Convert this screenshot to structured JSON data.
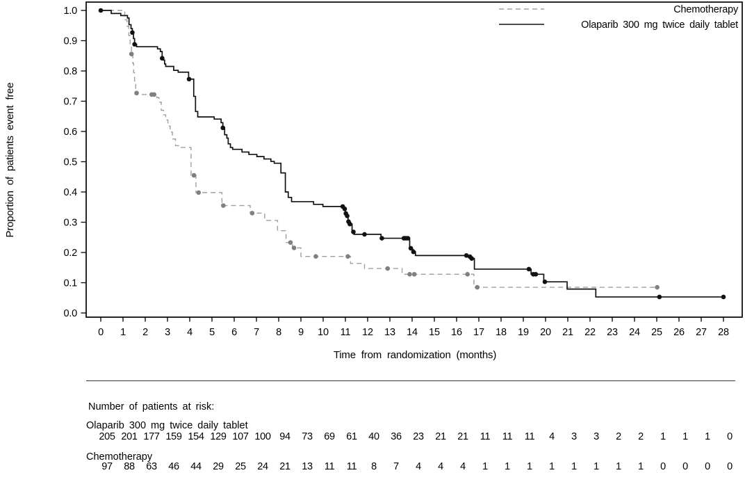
{
  "chart_data": {
    "type": "line",
    "subtype": "kaplan-meier-step",
    "title": "",
    "xlabel": "Time from randomization (months)",
    "ylabel": "Proportion of patients event free",
    "xlim": [
      0,
      28
    ],
    "ylim": [
      0.0,
      1.0
    ],
    "grid": false,
    "xtick_labels": [
      "0",
      "1",
      "2",
      "3",
      "4",
      "5",
      "6",
      "7",
      "8",
      "9",
      "10",
      "11",
      "12",
      "13",
      "14",
      "15",
      "16",
      "17",
      "18",
      "19",
      "20",
      "21",
      "22",
      "23",
      "24",
      "25",
      "26",
      "27",
      "28"
    ],
    "ytick_labels": [
      "1.0",
      "0.9",
      "0.8",
      "0.7",
      "0.6",
      "0.5",
      "0.4",
      "0.3",
      "0.2",
      "0.1",
      "0.0"
    ],
    "ytick_values": [
      1.0,
      0.9,
      0.8,
      0.7,
      0.6,
      0.5,
      0.4,
      0.3,
      0.2,
      0.1,
      0.0
    ],
    "legend": {
      "position": "top-right-inside",
      "entries": [
        {
          "label": "Chemotherapy",
          "style": "dashed",
          "color": "#9e9e9e"
        },
        {
          "label": "Olaparib 300 mg twice daily tablet",
          "style": "solid",
          "color": "#111111"
        }
      ]
    },
    "series": [
      {
        "name": "Chemotherapy",
        "color": "#9e9e9e",
        "censor_color": "#808080",
        "dash": "7 5",
        "width": 1.4,
        "end_month": 25.1,
        "steps": [
          [
            0,
            1
          ],
          [
            1.08,
            0.969
          ],
          [
            1.18,
            0.948
          ],
          [
            1.26,
            0.917
          ],
          [
            1.32,
            0.886
          ],
          [
            1.38,
            0.856
          ],
          [
            1.44,
            0.825
          ],
          [
            1.48,
            0.794
          ],
          [
            1.52,
            0.763
          ],
          [
            1.57,
            0.732
          ],
          [
            1.62,
            0.722
          ],
          [
            2.52,
            0.712
          ],
          [
            2.62,
            0.697
          ],
          [
            2.72,
            0.67
          ],
          [
            2.82,
            0.655
          ],
          [
            2.92,
            0.638
          ],
          [
            3.02,
            0.618
          ],
          [
            3.12,
            0.598
          ],
          [
            3.22,
            0.575
          ],
          [
            3.36,
            0.553
          ],
          [
            3.5,
            0.547
          ],
          [
            4.06,
            0.455
          ],
          [
            4.28,
            0.398
          ],
          [
            5.45,
            0.355
          ],
          [
            6.72,
            0.33
          ],
          [
            7.37,
            0.306
          ],
          [
            7.95,
            0.272
          ],
          [
            8.33,
            0.233
          ],
          [
            8.62,
            0.215
          ],
          [
            9,
            0.187
          ],
          [
            11.23,
            0.164
          ],
          [
            11.86,
            0.147
          ],
          [
            13.55,
            0.128
          ],
          [
            16.78,
            0.085
          ]
        ],
        "censors": [
          [
            1.38,
            0.856
          ],
          [
            1.61,
            0.727
          ],
          [
            2.29,
            0.722
          ],
          [
            2.4,
            0.722
          ],
          [
            4.19,
            0.455
          ],
          [
            4.4,
            0.398
          ],
          [
            5.51,
            0.355
          ],
          [
            6.81,
            0.33
          ],
          [
            8.53,
            0.233
          ],
          [
            8.69,
            0.215
          ],
          [
            9.67,
            0.187
          ],
          [
            11.11,
            0.187
          ],
          [
            12.9,
            0.147
          ],
          [
            13.89,
            0.128
          ],
          [
            14.1,
            0.128
          ],
          [
            16.49,
            0.128
          ],
          [
            16.93,
            0.085
          ],
          [
            25.02,
            0.085
          ]
        ]
      },
      {
        "name": "Olaparib 300 mg twice daily tablet",
        "color": "#111111",
        "censor_color": "#111111",
        "dash": null,
        "width": 1.7,
        "end_month": 28.05,
        "steps": [
          [
            0,
            1
          ],
          [
            0.47,
            0.99
          ],
          [
            0.9,
            0.983
          ],
          [
            1.2,
            0.975
          ],
          [
            1.27,
            0.953
          ],
          [
            1.36,
            0.94
          ],
          [
            1.42,
            0.927
          ],
          [
            1.47,
            0.907
          ],
          [
            1.52,
            0.888
          ],
          [
            1.61,
            0.88
          ],
          [
            2.55,
            0.873
          ],
          [
            2.68,
            0.864
          ],
          [
            2.76,
            0.842
          ],
          [
            2.82,
            0.836
          ],
          [
            2.87,
            0.823
          ],
          [
            2.92,
            0.815
          ],
          [
            3.28,
            0.802
          ],
          [
            3.48,
            0.796
          ],
          [
            3.95,
            0.773
          ],
          [
            4.18,
            0.716
          ],
          [
            4.26,
            0.666
          ],
          [
            4.36,
            0.648
          ],
          [
            5.1,
            0.641
          ],
          [
            5.41,
            0.629
          ],
          [
            5.49,
            0.612
          ],
          [
            5.57,
            0.589
          ],
          [
            5.67,
            0.578
          ],
          [
            5.73,
            0.559
          ],
          [
            5.83,
            0.547
          ],
          [
            5.93,
            0.541
          ],
          [
            6.35,
            0.532
          ],
          [
            6.66,
            0.524
          ],
          [
            7.02,
            0.517
          ],
          [
            7.34,
            0.509
          ],
          [
            7.65,
            0.501
          ],
          [
            7.8,
            0.495
          ],
          [
            8.1,
            0.463
          ],
          [
            8.3,
            0.4
          ],
          [
            8.43,
            0.382
          ],
          [
            8.58,
            0.368
          ],
          [
            9.57,
            0.359
          ],
          [
            9.99,
            0.352
          ],
          [
            10.95,
            0.344
          ],
          [
            11,
            0.329
          ],
          [
            11.06,
            0.321
          ],
          [
            11.12,
            0.302
          ],
          [
            11.18,
            0.294
          ],
          [
            11.3,
            0.268
          ],
          [
            11.38,
            0.26
          ],
          [
            12.6,
            0.247
          ],
          [
            13.89,
            0.218
          ],
          [
            13.96,
            0.21
          ],
          [
            14.05,
            0.202
          ],
          [
            14.15,
            0.19
          ],
          [
            16.55,
            0.186
          ],
          [
            16.66,
            0.18
          ],
          [
            16.8,
            0.145
          ],
          [
            19.35,
            0.128
          ],
          [
            19.92,
            0.103
          ],
          [
            20.97,
            0.079
          ],
          [
            22.26,
            0.053
          ]
        ],
        "censors": [
          [
            0,
            1
          ],
          [
            1.42,
            0.927
          ],
          [
            1.52,
            0.888
          ],
          [
            2.76,
            0.842
          ],
          [
            3.97,
            0.773
          ],
          [
            5.49,
            0.612
          ],
          [
            10.88,
            0.352
          ],
          [
            10.97,
            0.344
          ],
          [
            11.02,
            0.329
          ],
          [
            11.08,
            0.321
          ],
          [
            11.14,
            0.302
          ],
          [
            11.2,
            0.294
          ],
          [
            11.36,
            0.268
          ],
          [
            11.86,
            0.26
          ],
          [
            12.64,
            0.247
          ],
          [
            13.63,
            0.247
          ],
          [
            13.72,
            0.247
          ],
          [
            13.81,
            0.247
          ],
          [
            13.94,
            0.214
          ],
          [
            14.06,
            0.202
          ],
          [
            16.44,
            0.19
          ],
          [
            16.6,
            0.186
          ],
          [
            16.68,
            0.18
          ],
          [
            19.25,
            0.145
          ],
          [
            19.45,
            0.128
          ],
          [
            19.56,
            0.128
          ],
          [
            19.97,
            0.103
          ],
          [
            25.12,
            0.053
          ],
          [
            28,
            0.053
          ]
        ]
      }
    ],
    "at_risk": {
      "title": "Number of patients at risk:",
      "months": [
        0,
        1,
        2,
        3,
        4,
        5,
        6,
        7,
        8,
        9,
        10,
        11,
        12,
        13,
        14,
        15,
        16,
        17,
        18,
        19,
        20,
        21,
        22,
        23,
        24,
        25,
        26,
        27,
        28
      ],
      "groups": [
        {
          "label": "Olaparib 300 mg twice daily tablet",
          "counts": [
            205,
            201,
            177,
            159,
            154,
            129,
            107,
            100,
            94,
            73,
            69,
            61,
            40,
            36,
            23,
            21,
            21,
            11,
            11,
            11,
            4,
            3,
            3,
            2,
            2,
            1,
            1,
            1,
            0
          ]
        },
        {
          "label": "Chemotherapy",
          "counts": [
            97,
            88,
            63,
            46,
            44,
            29,
            25,
            24,
            21,
            13,
            11,
            11,
            8,
            7,
            4,
            4,
            4,
            1,
            1,
            1,
            1,
            1,
            1,
            1,
            1,
            0,
            0,
            0,
            0
          ]
        }
      ]
    }
  }
}
